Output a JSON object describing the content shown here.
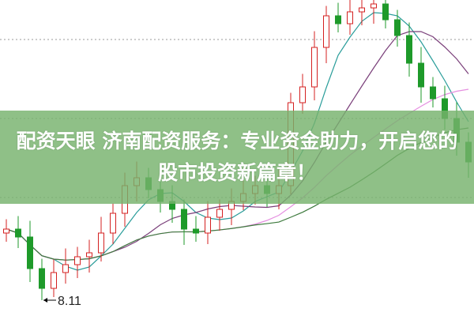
{
  "banner": {
    "line1": "配资天眼 济南配资服务：专业资金助力，开启您的",
    "line2": "股市投资新篇章！"
  },
  "chart_data": {
    "type": "candlestick",
    "open": [
      9.81,
      9.91,
      9.71,
      8.91,
      8.41,
      8.81,
      9.01,
      9.21,
      9.31,
      9.81,
      10.31,
      11.01,
      11.21,
      10.91,
      10.61,
      10.41,
      9.91,
      9.81,
      10.21,
      10.41,
      10.61,
      10.81,
      11.01,
      10.81,
      11.01,
      13.11,
      13.51,
      14.51,
      15.31,
      15.11,
      15.41,
      15.51,
      15.61,
      15.21,
      14.81,
      14.11,
      13.51,
      13.21,
      12.71,
      12.11
    ],
    "close": [
      9.91,
      9.71,
      8.91,
      8.41,
      8.81,
      9.01,
      9.21,
      9.31,
      9.81,
      10.31,
      11.01,
      11.21,
      10.91,
      10.61,
      10.41,
      9.91,
      9.81,
      10.21,
      10.41,
      10.61,
      10.81,
      11.01,
      10.81,
      11.01,
      13.11,
      13.51,
      14.51,
      15.31,
      15.11,
      15.41,
      15.51,
      15.61,
      15.21,
      14.81,
      14.11,
      13.51,
      13.21,
      12.71,
      12.11,
      11.61
    ],
    "annotations": [
      {
        "label": "8.11",
        "candle_index": 3,
        "value": 8.11
      }
    ],
    "moving_averages": [
      {
        "period": 5,
        "color": "#2a9d9a"
      },
      {
        "period": 10,
        "color": "#7a3f7a"
      },
      {
        "period": 20,
        "color": "#e58fe0"
      },
      {
        "period": 30,
        "color": "#3d7a3d"
      }
    ],
    "grid": true,
    "gridlines": [
      10.71,
      12.71,
      14.71,
      16.71
    ],
    "ylim": [
      8.0,
      15.7
    ],
    "colors": {
      "up": "#d42020",
      "down": "#1e9a2a",
      "grid": "#9a9a9a",
      "banner": "#76b26c"
    }
  }
}
